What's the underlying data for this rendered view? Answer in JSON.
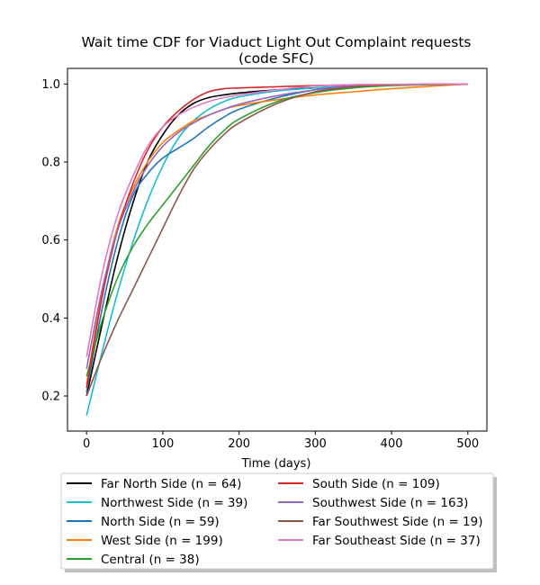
{
  "chart_data": {
    "type": "line",
    "title_lines": [
      "Wait time CDF for Viaduct Light Out Complaint  requests",
      "(code SFC)"
    ],
    "xlabel": "Time (days)",
    "ylabel": "",
    "xlim": [
      -25,
      525
    ],
    "ylim": [
      0.11,
      1.04
    ],
    "xticks": [
      0,
      100,
      200,
      300,
      400,
      500
    ],
    "xtick_labels": [
      "0",
      "100",
      "200",
      "300",
      "400",
      "500"
    ],
    "yticks": [
      0.2,
      0.4,
      0.6,
      0.8,
      1.0
    ],
    "ytick_labels": [
      "0.2",
      "0.4",
      "0.6",
      "0.8",
      "1.0"
    ],
    "grid": false,
    "legend_placement": "below plot, two columns, with shadow",
    "series": [
      {
        "name": "Far North Side (n = 64)",
        "color": "#000000",
        "x": [
          0,
          20,
          40,
          60,
          80,
          100,
          120,
          140,
          160,
          180,
          200,
          250,
          300,
          350,
          400,
          500
        ],
        "y": [
          0.2,
          0.38,
          0.55,
          0.69,
          0.8,
          0.87,
          0.92,
          0.95,
          0.965,
          0.972,
          0.977,
          0.985,
          0.99,
          0.995,
          0.998,
          1.0
        ]
      },
      {
        "name": "Northwest Side (n = 39)",
        "color": "#17becf",
        "x": [
          0,
          20,
          40,
          60,
          80,
          100,
          120,
          140,
          160,
          180,
          200,
          250,
          300,
          350,
          400,
          500
        ],
        "y": [
          0.15,
          0.31,
          0.46,
          0.59,
          0.7,
          0.79,
          0.86,
          0.905,
          0.935,
          0.955,
          0.967,
          0.982,
          0.99,
          0.995,
          0.998,
          1.0
        ]
      },
      {
        "name": "North Side (n = 59)",
        "color": "#1f77b4",
        "x": [
          0,
          20,
          40,
          60,
          80,
          100,
          120,
          140,
          160,
          180,
          200,
          250,
          300,
          350,
          400,
          500
        ],
        "y": [
          0.21,
          0.42,
          0.59,
          0.71,
          0.77,
          0.81,
          0.835,
          0.86,
          0.89,
          0.915,
          0.935,
          0.965,
          0.985,
          0.995,
          0.998,
          1.0
        ]
      },
      {
        "name": "West Side (n = 199)",
        "color": "#ff7f0e",
        "x": [
          0,
          20,
          40,
          60,
          80,
          100,
          120,
          140,
          160,
          180,
          200,
          250,
          300,
          350,
          400,
          500
        ],
        "y": [
          0.23,
          0.46,
          0.63,
          0.73,
          0.8,
          0.85,
          0.88,
          0.905,
          0.92,
          0.935,
          0.945,
          0.96,
          0.972,
          0.98,
          0.988,
          1.0
        ]
      },
      {
        "name": "Central (n = 38)",
        "color": "#2ca02c",
        "x": [
          0,
          20,
          40,
          60,
          80,
          100,
          120,
          140,
          160,
          180,
          200,
          250,
          300,
          350,
          400,
          500
        ],
        "y": [
          0.25,
          0.39,
          0.5,
          0.58,
          0.64,
          0.69,
          0.74,
          0.79,
          0.84,
          0.88,
          0.91,
          0.955,
          0.978,
          0.99,
          0.996,
          1.0
        ]
      },
      {
        "name": "South Side (n = 109)",
        "color": "#d62728",
        "x": [
          0,
          20,
          40,
          60,
          80,
          100,
          120,
          140,
          160,
          180,
          200,
          250,
          300,
          350,
          400,
          500
        ],
        "y": [
          0.22,
          0.45,
          0.62,
          0.74,
          0.83,
          0.89,
          0.93,
          0.96,
          0.98,
          0.988,
          0.99,
          0.993,
          0.996,
          0.998,
          0.999,
          1.0
        ]
      },
      {
        "name": "Southwest Side (n = 163)",
        "color": "#9467bd",
        "x": [
          0,
          20,
          40,
          60,
          80,
          100,
          120,
          140,
          160,
          180,
          200,
          250,
          300,
          350,
          400,
          500
        ],
        "y": [
          0.27,
          0.47,
          0.62,
          0.72,
          0.79,
          0.84,
          0.875,
          0.9,
          0.92,
          0.935,
          0.948,
          0.97,
          0.985,
          0.995,
          0.998,
          1.0
        ]
      },
      {
        "name": "Far Southwest Side (n = 19)",
        "color": "#8c564b",
        "x": [
          0,
          20,
          40,
          60,
          80,
          100,
          120,
          140,
          160,
          180,
          200,
          250,
          300,
          350,
          400,
          500
        ],
        "y": [
          0.2,
          0.3,
          0.39,
          0.47,
          0.55,
          0.63,
          0.71,
          0.78,
          0.83,
          0.87,
          0.9,
          0.95,
          0.98,
          0.993,
          0.998,
          1.0
        ]
      },
      {
        "name": "Far Southeast Side (n = 37)",
        "color": "#e377c2",
        "x": [
          0,
          20,
          40,
          60,
          80,
          100,
          120,
          140,
          160,
          180,
          200,
          250,
          300,
          350,
          400,
          500
        ],
        "y": [
          0.3,
          0.51,
          0.66,
          0.76,
          0.84,
          0.89,
          0.92,
          0.94,
          0.955,
          0.965,
          0.972,
          0.985,
          0.995,
          0.998,
          0.999,
          1.0
        ]
      }
    ]
  }
}
